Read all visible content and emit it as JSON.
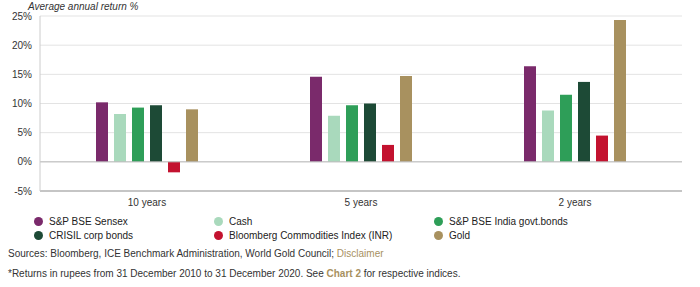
{
  "chart_data": {
    "type": "bar",
    "y_label": "Average annual return %",
    "categories": [
      "10 years",
      "5 years",
      "2 years"
    ],
    "series": [
      {
        "name": "S&P BSE Sensex",
        "color": "#7a2a6b",
        "values": [
          10.2,
          14.6,
          16.4
        ]
      },
      {
        "name": "Cash",
        "color": "#a9d9bc",
        "values": [
          8.2,
          7.9,
          8.8
        ]
      },
      {
        "name": "S&P BSE India govt.bonds",
        "color": "#2e9e58",
        "values": [
          9.3,
          9.7,
          11.5
        ]
      },
      {
        "name": "CRISIL corp bonds",
        "color": "#1d4a36",
        "values": [
          9.7,
          10.0,
          13.7
        ]
      },
      {
        "name": "Bloomberg Commodities Index (INR)",
        "color": "#c3122f",
        "values": [
          -1.8,
          2.9,
          4.5
        ]
      },
      {
        "name": "Gold",
        "color": "#a8915f",
        "values": [
          9.0,
          14.7,
          24.3
        ]
      }
    ],
    "ylim": [
      -5,
      25
    ],
    "yticks": [
      {
        "value": -5,
        "label": "-5%"
      },
      {
        "value": 0,
        "label": "0%"
      },
      {
        "value": 5,
        "label": "5%"
      },
      {
        "value": 10,
        "label": "10%"
      },
      {
        "value": 15,
        "label": "15%"
      },
      {
        "value": 20,
        "label": "20%"
      },
      {
        "value": 25,
        "label": "25%"
      }
    ],
    "grid": true,
    "legend": "bottom",
    "source": {
      "text": "Sources: Bloomberg, ICE Benchmark Administration, World Gold Council;",
      "link": "Disclaimer"
    },
    "footnote": {
      "before": "*Returns in rupees from 31 December 2010 to 31 December 2020. See",
      "link": "Chart 2",
      "after": "for respective indices."
    }
  }
}
